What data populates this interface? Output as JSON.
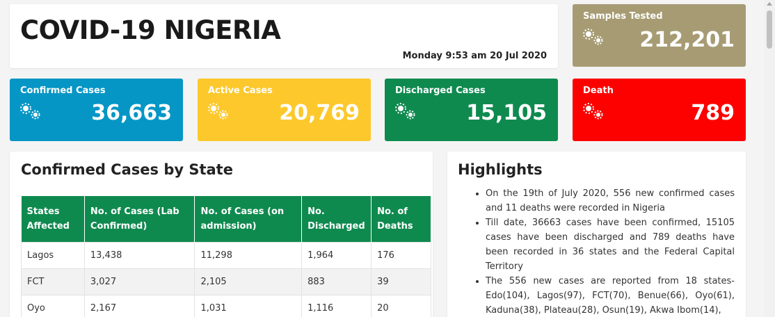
{
  "header": {
    "title": "COVID-19 NIGERIA",
    "date": "Monday 9:53 am 20 Jul 2020"
  },
  "stats": {
    "samples": {
      "label": "Samples Tested",
      "value": "212,201",
      "icon": "virus-icon",
      "color": "#a69b73"
    },
    "confirmed": {
      "label": "Confirmed Cases",
      "value": "36,663",
      "icon": "virus-icon",
      "color": "#0596c5"
    },
    "active": {
      "label": "Active Cases",
      "value": "20,769",
      "icon": "virus-icon",
      "color": "#fcc82c"
    },
    "discharged": {
      "label": "Discharged Cases",
      "value": "15,105",
      "icon": "virus-icon",
      "color": "#0f8a4f"
    },
    "death": {
      "label": "Death",
      "value": "789",
      "icon": "virus-icon",
      "color": "#fd0000"
    }
  },
  "states_table": {
    "title": "Confirmed Cases by State",
    "headers": [
      "States Affected",
      "No. of Cases (Lab Confirmed)",
      "No. of Cases (on admission)",
      "No. Discharged",
      "No. of Deaths"
    ],
    "rows": [
      [
        "Lagos",
        "13,438",
        "11,298",
        "1,964",
        "176"
      ],
      [
        "FCT",
        "3,027",
        "2,105",
        "883",
        "39"
      ],
      [
        "Oyo",
        "2,167",
        "1,031",
        "1,116",
        "20"
      ]
    ]
  },
  "highlights": {
    "title": "Highlights",
    "items": [
      "On the 19th of July 2020, 556 new confirmed cases and 11 deaths were recorded in Nigeria",
      "Till date, 36663 cases have been confirmed, 15105 cases have been discharged and 789 deaths have been recorded in 36 states and the Federal Capital Territory",
      "The 556 new cases are reported from 18 states- Edo(104), Lagos(97), FCT(70), Benue(66), Oyo(61), Kaduna(38), Plateau(28), Osun(19), Akwa Ibom(14),"
    ]
  }
}
